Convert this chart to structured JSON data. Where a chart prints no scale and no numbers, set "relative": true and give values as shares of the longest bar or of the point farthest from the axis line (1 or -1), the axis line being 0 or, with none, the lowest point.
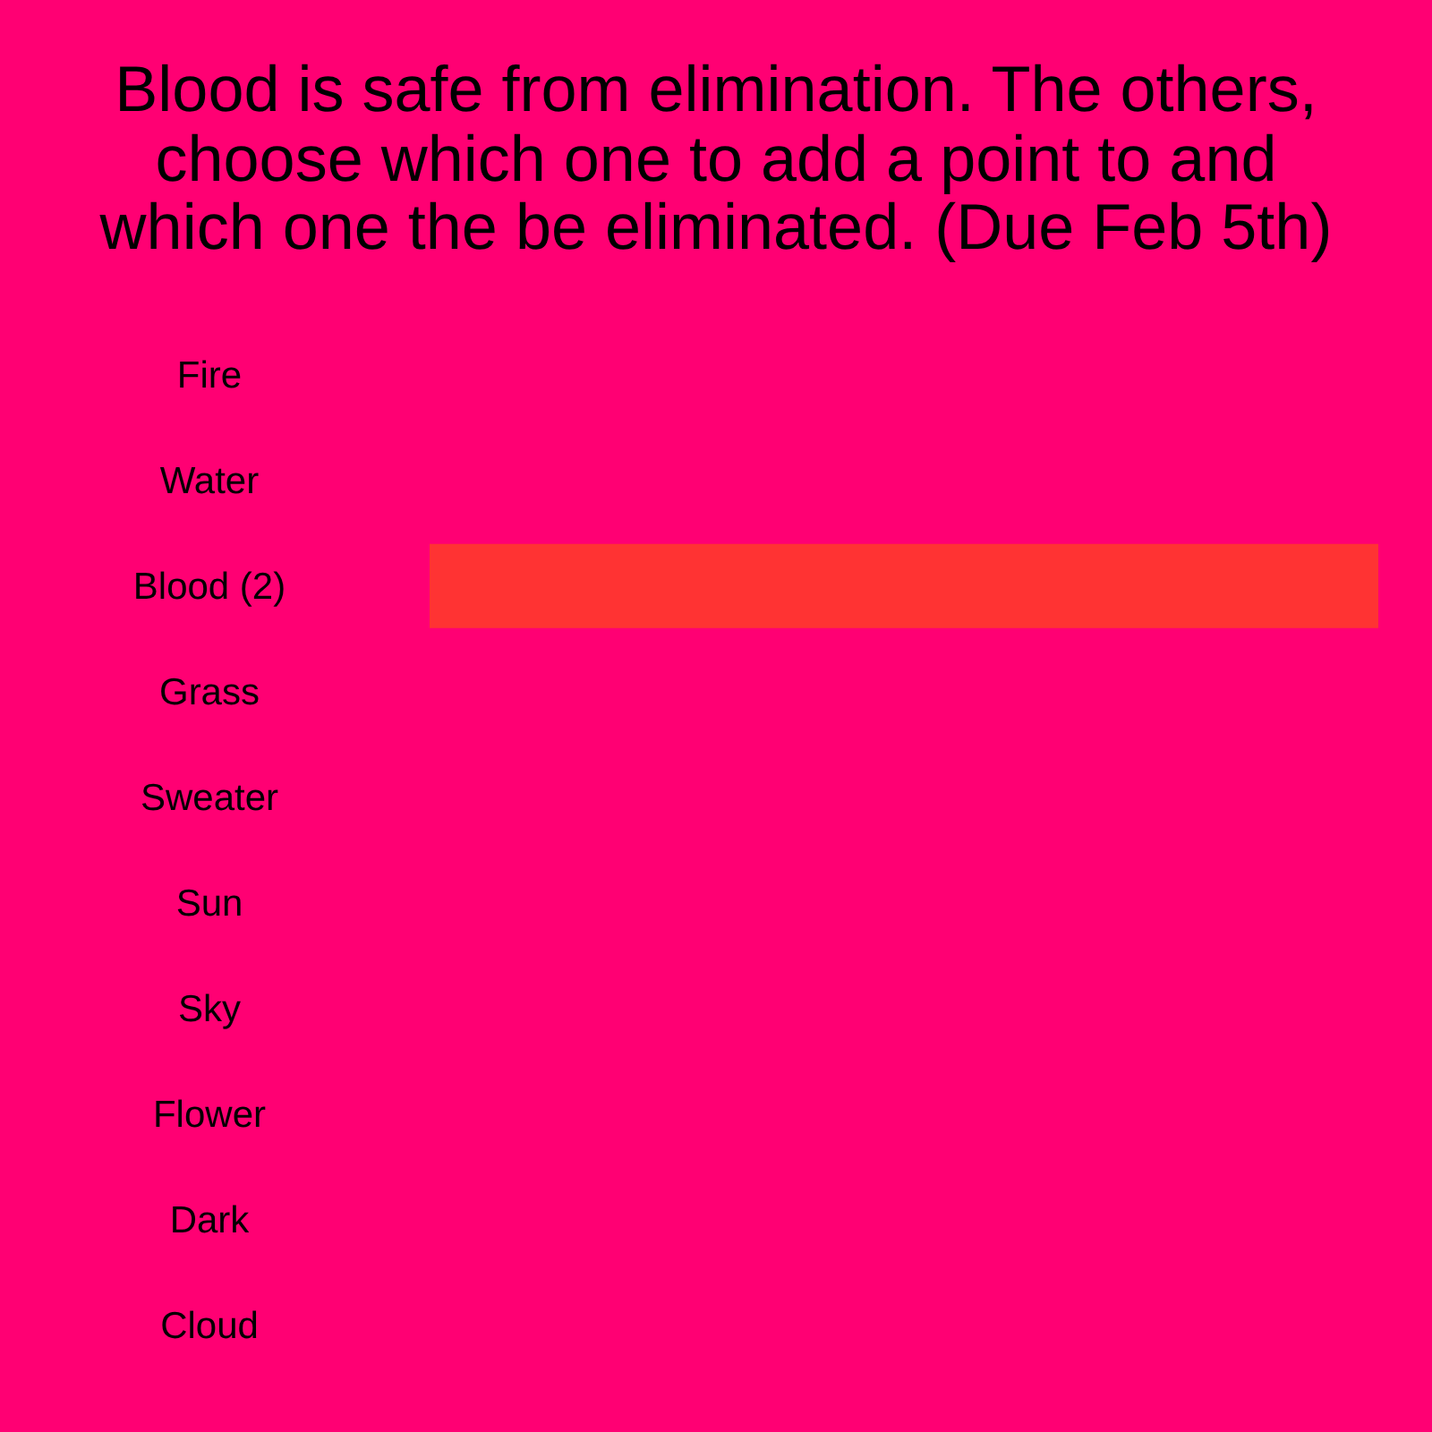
{
  "chart_data": {
    "type": "bar",
    "orientation": "horizontal",
    "relative": true,
    "title": "Blood is safe from elimination. The others, choose which one to add a point to and which one the be eliminated. (Due Feb 5th)",
    "categories": [
      "Fire",
      "Water",
      "Blood (2)",
      "Grass",
      "Sweater",
      "Sun",
      "Sky",
      "Flower",
      "Dark",
      "Cloud"
    ],
    "values": [
      0,
      0,
      1,
      0,
      0,
      0,
      0,
      0,
      0,
      0
    ],
    "color": "#ff3333"
  }
}
